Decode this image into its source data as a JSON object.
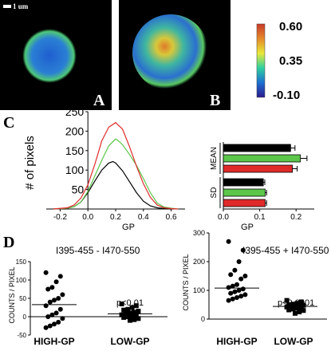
{
  "panels": {
    "A": {
      "label": "A"
    },
    "B": {
      "label": "B"
    },
    "C": {
      "label": "C"
    },
    "D": {
      "label": "D"
    }
  },
  "scale_bar": {
    "label": "1 um"
  },
  "colorbar": {
    "max": "0.60",
    "mid": "0.35",
    "min": "-0.10",
    "colors": [
      "#2a1a8c",
      "#1e6fd0",
      "#2fd0a0",
      "#e8e83a",
      "#e58a2a",
      "#c83a2a"
    ]
  },
  "colors": {
    "black": "#000000",
    "green": "#5cc64a",
    "red": "#e02a2a"
  },
  "chart_data": [
    {
      "type": "line",
      "xlabel": "GP",
      "ylabel": "# of pixels",
      "xlim": [
        -0.3,
        0.7
      ],
      "ylim": [
        0,
        250
      ],
      "x_ticks": [
        "-0.2",
        "0.0",
        "0.2",
        "0.4",
        "0.6"
      ],
      "y_ticks": [
        "50",
        "100",
        "150",
        "200",
        "250"
      ],
      "series": [
        {
          "color": "black",
          "x": [
            -0.25,
            -0.15,
            -0.1,
            -0.05,
            0.0,
            0.05,
            0.1,
            0.15,
            0.18,
            0.2,
            0.25,
            0.3,
            0.35,
            0.4,
            0.45,
            0.5,
            0.55,
            0.6
          ],
          "y": [
            0,
            2,
            6,
            18,
            42,
            72,
            100,
            118,
            122,
            118,
            98,
            70,
            42,
            20,
            8,
            3,
            1,
            0
          ]
        },
        {
          "color": "green",
          "x": [
            -0.25,
            -0.15,
            -0.1,
            -0.05,
            0.0,
            0.05,
            0.1,
            0.15,
            0.2,
            0.22,
            0.25,
            0.3,
            0.35,
            0.4,
            0.45,
            0.5,
            0.55,
            0.6,
            0.65
          ],
          "y": [
            0,
            2,
            6,
            18,
            45,
            85,
            125,
            162,
            180,
            175,
            165,
            140,
            112,
            78,
            42,
            15,
            5,
            2,
            0
          ]
        },
        {
          "color": "red",
          "x": [
            -0.25,
            -0.15,
            -0.1,
            -0.05,
            0.0,
            0.05,
            0.1,
            0.15,
            0.2,
            0.25,
            0.3,
            0.35,
            0.4,
            0.45,
            0.5,
            0.55,
            0.6,
            0.65
          ],
          "y": [
            0,
            3,
            10,
            28,
            62,
            115,
            175,
            210,
            222,
            205,
            160,
            110,
            65,
            30,
            10,
            3,
            1,
            0
          ]
        }
      ]
    },
    {
      "type": "bar",
      "orientation": "horizontal",
      "xlabel": "GP",
      "xlim": [
        0,
        0.25
      ],
      "x_ticks": [
        "0.0",
        "0.1",
        "0.2"
      ],
      "groups": [
        {
          "label": "MEAN",
          "bars": [
            {
              "color": "black",
              "value": 0.185,
              "error": 0.012
            },
            {
              "color": "green",
              "value": 0.212,
              "error": 0.018
            },
            {
              "color": "red",
              "value": 0.19,
              "error": 0.013
            }
          ]
        },
        {
          "label": "SD",
          "bars": [
            {
              "color": "black",
              "value": 0.11,
              "error": 0.004
            },
            {
              "color": "green",
              "value": 0.115,
              "error": 0.004
            },
            {
              "color": "red",
              "value": 0.115,
              "error": 0.004
            }
          ]
        }
      ]
    },
    {
      "type": "scatter",
      "title": "I395-455 - I470-550",
      "ylabel": "COUNTS / PIXEL",
      "ylim": [
        -50,
        150
      ],
      "y_ticks": [
        "-50",
        "0",
        "50",
        "100",
        "150"
      ],
      "categories": [
        "HIGH-GP",
        "LOW-GP"
      ],
      "annotation": "p<0.01",
      "groups": [
        {
          "name": "HIGH-GP",
          "marker": "circle",
          "mean": 33,
          "values": [
            120,
            110,
            95,
            80,
            75,
            60,
            50,
            45,
            40,
            30,
            20,
            10,
            5,
            0,
            -5,
            -15,
            -20,
            -25,
            -30
          ]
        },
        {
          "name": "LOW-GP",
          "marker": "square",
          "mean": 8,
          "values": [
            35,
            30,
            25,
            20,
            18,
            15,
            12,
            10,
            8,
            5,
            3,
            2,
            0,
            -2,
            -5,
            -8,
            -10
          ]
        }
      ]
    },
    {
      "type": "scatter",
      "title": "I395-455 + I470-550",
      "ylabel": "COUNTS / PIXEL",
      "ylim": [
        0,
        300
      ],
      "y_ticks": [
        "0",
        "100",
        "200",
        "300"
      ],
      "categories": [
        "HIGH-GP",
        "LOW-GP"
      ],
      "annotation": "p<0.0001",
      "groups": [
        {
          "name": "HIGH-GP",
          "marker": "circle",
          "mean": 108,
          "values": [
            270,
            240,
            200,
            170,
            155,
            150,
            140,
            120,
            115,
            110,
            105,
            100,
            95,
            90,
            85,
            80,
            75,
            70,
            65
          ]
        },
        {
          "name": "LOW-GP",
          "marker": "square",
          "mean": 44,
          "values": [
            65,
            60,
            55,
            52,
            50,
            48,
            46,
            45,
            44,
            42,
            40,
            38,
            35,
            32,
            30,
            25,
            20
          ]
        }
      ]
    }
  ]
}
